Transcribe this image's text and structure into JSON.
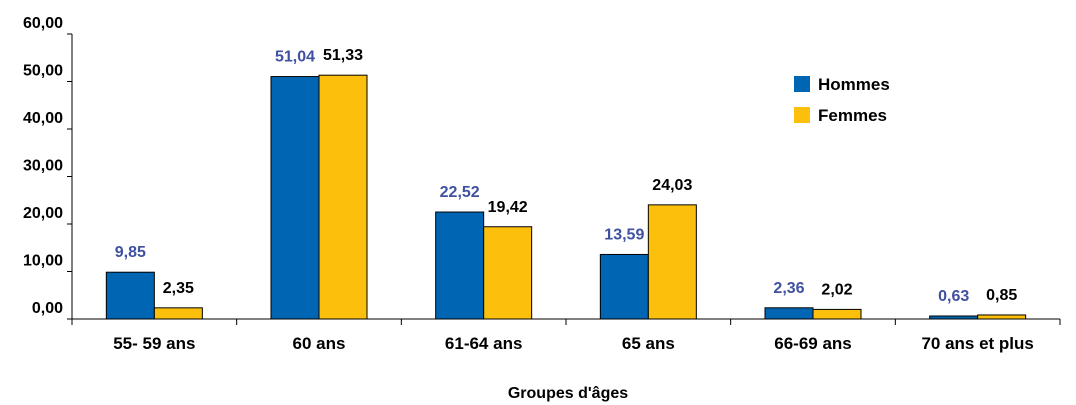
{
  "chart_data": {
    "type": "bar",
    "title": "",
    "xlabel": "Groupes d'âges",
    "ylabel": "",
    "ylim": [
      0,
      60
    ],
    "yticks": [
      "0,00",
      "10,00",
      "20,00",
      "30,00",
      "40,00",
      "50,00",
      "60,00"
    ],
    "categories": [
      "55- 59 ans",
      "60 ans",
      "61-64 ans",
      "65 ans",
      "66-69 ans",
      "70 ans et plus"
    ],
    "series": [
      {
        "name": "Hommes",
        "color": "#0066b3",
        "values": [
          9.85,
          51.04,
          22.52,
          13.59,
          2.36,
          0.63
        ],
        "labels": [
          "9,85",
          "51,04",
          "22,52",
          "13,59",
          "2,36",
          "0,63"
        ]
      },
      {
        "name": "Femmes",
        "color": "#fbbf0c",
        "values": [
          2.35,
          51.33,
          19.42,
          24.03,
          2.02,
          0.85
        ],
        "labels": [
          "2,35",
          "51,33",
          "19,42",
          "24,03",
          "2,02",
          "0,85"
        ]
      }
    ],
    "legend": "top-right",
    "grid": false
  }
}
